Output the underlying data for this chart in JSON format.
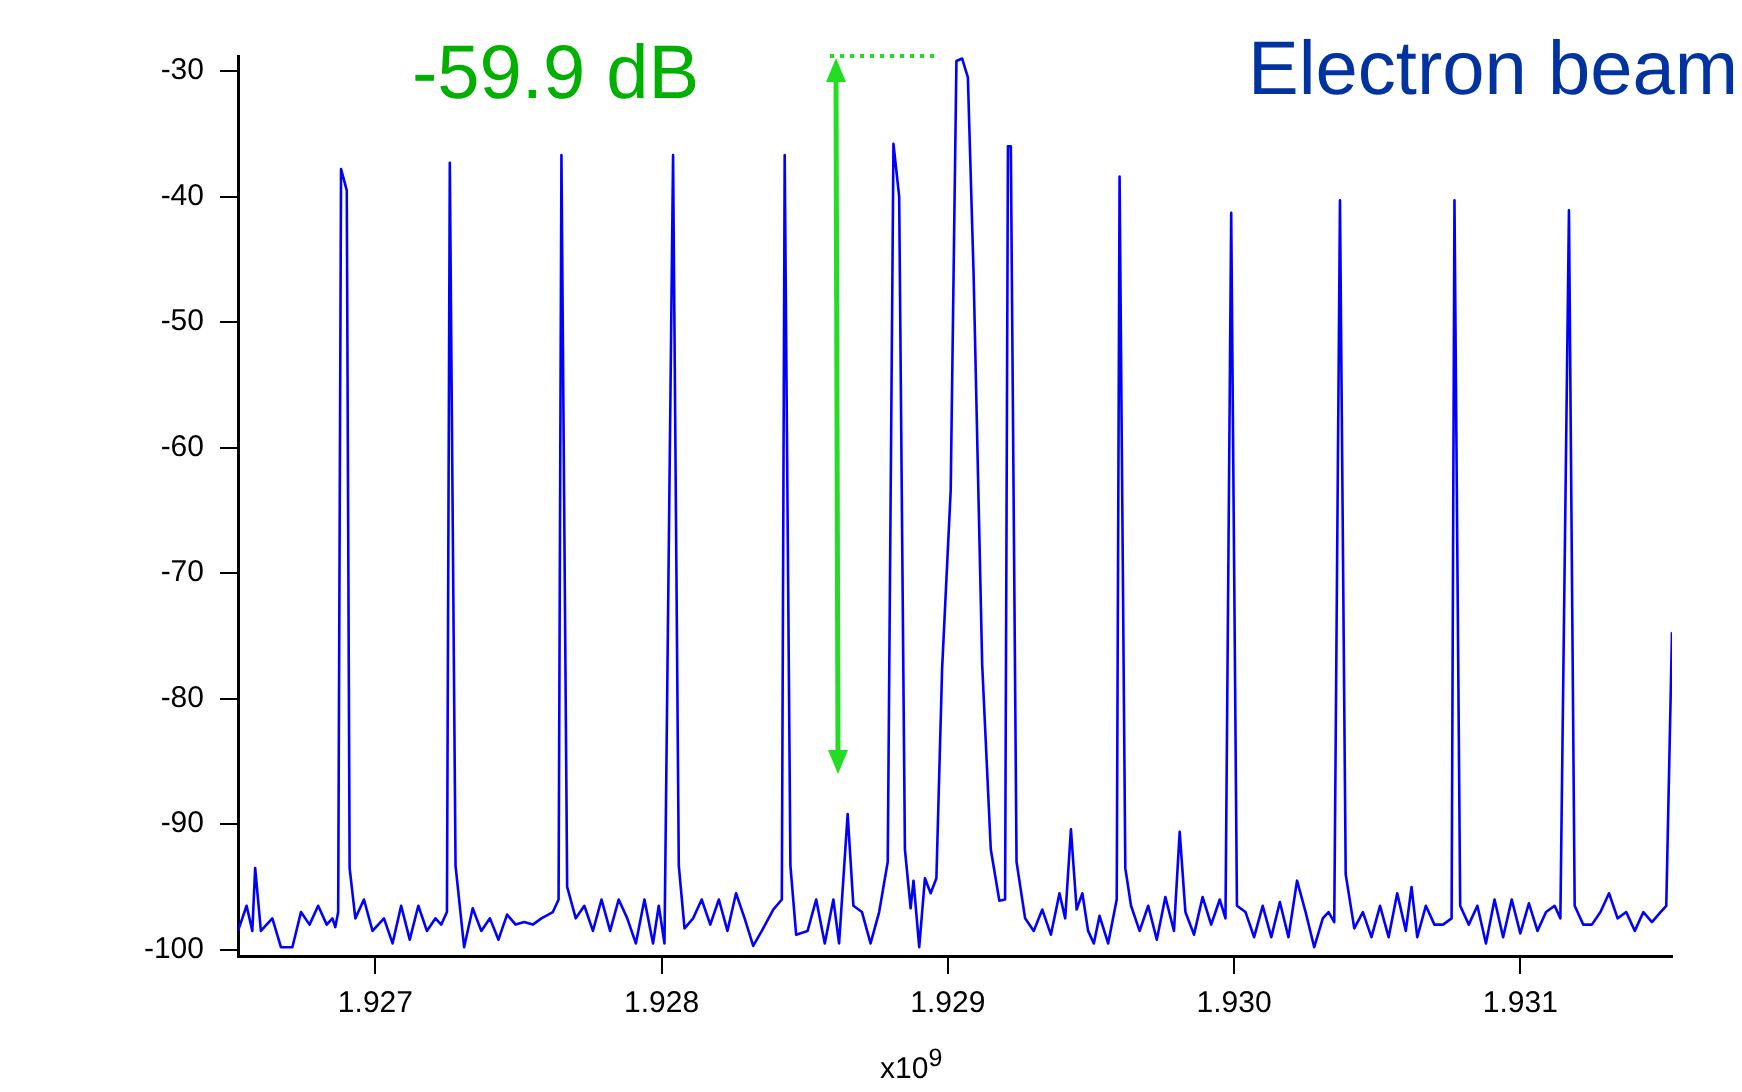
{
  "chart_data": {
    "type": "line",
    "title": "Electron beam",
    "xlabel": "x10$^{9}$",
    "annotations": [
      "-59.9 dB"
    ],
    "xlim": [
      1.92652,
      1.93153
    ],
    "ylim": [
      -100.5,
      -28.8
    ],
    "xticks": [
      1.927,
      1.928,
      1.929,
      {
        "value": 1.93,
        "label": "1.930"
      },
      1.931
    ],
    "yticks": [
      -30,
      -40,
      -50,
      -60,
      -70,
      -80,
      -90,
      -100
    ],
    "grid": false,
    "marker": "none",
    "line_style": "solid",
    "series": [
      {
        "color": "#0000ff",
        "x": [
          1.92652,
          1.92655,
          1.92657,
          1.92658,
          1.9266,
          1.92664,
          1.92667,
          1.92671,
          1.92674,
          1.92677,
          1.9268,
          1.92683,
          1.92685,
          1.92686,
          1.92687,
          1.92688,
          1.9269,
          1.92691,
          1.92693,
          1.92696,
          1.92699,
          1.92703,
          1.92706,
          1.92709,
          1.92712,
          1.92715,
          1.92718,
          1.92721,
          1.92723,
          1.92725,
          1.92726,
          1.92728,
          1.92731,
          1.92734,
          1.92737,
          1.9274,
          1.92743,
          1.92746,
          1.92749,
          1.92752,
          1.92755,
          1.92758,
          1.92762,
          1.92764,
          1.92765,
          1.92767,
          1.9277,
          1.92773,
          1.92776,
          1.92779,
          1.92782,
          1.92785,
          1.92788,
          1.92791,
          1.92794,
          1.92797,
          1.92799,
          1.92801,
          1.92804,
          1.92806,
          1.92808,
          1.92811,
          1.92814,
          1.92817,
          1.9282,
          1.92823,
          1.92826,
          1.92829,
          1.92832,
          1.92835,
          1.92839,
          1.92842,
          1.92843,
          1.92845,
          1.92847,
          1.92851,
          1.92854,
          1.92857,
          1.9286,
          1.92862,
          1.92865,
          1.92867,
          1.9287,
          1.92873,
          1.92876,
          1.92879,
          1.92881,
          1.92883,
          1.92885,
          1.92887,
          1.92888,
          1.9289,
          1.92892,
          1.92894,
          1.92896,
          1.92898,
          1.92901,
          1.92903,
          1.92905,
          1.92907,
          1.92909,
          1.92912,
          1.92915,
          1.92918,
          1.9292,
          1.92921,
          1.92922,
          1.92924,
          1.92927,
          1.9293,
          1.92933,
          1.92936,
          1.92939,
          1.92941,
          1.92943,
          1.92945,
          1.92947,
          1.92949,
          1.92951,
          1.92953,
          1.92956,
          1.92959,
          1.9296,
          1.92962,
          1.92964,
          1.92967,
          1.9297,
          1.92973,
          1.92976,
          1.92979,
          1.92981,
          1.92983,
          1.92986,
          1.92989,
          1.92992,
          1.92995,
          1.92997,
          1.92999,
          1.93001,
          1.93004,
          1.93007,
          1.9301,
          1.93013,
          1.93016,
          1.93019,
          1.93022,
          1.93025,
          1.93028,
          1.93031,
          1.93033,
          1.93035,
          1.93037,
          1.93039,
          1.93042,
          1.93045,
          1.93048,
          1.93051,
          1.93054,
          1.93057,
          1.9306,
          1.93062,
          1.93064,
          1.93067,
          1.9307,
          1.93073,
          1.93076,
          1.93077,
          1.93079,
          1.93082,
          1.93085,
          1.93088,
          1.93091,
          1.93094,
          1.93097,
          1.931,
          1.93103,
          1.93106,
          1.93109,
          1.93112,
          1.93114,
          1.93117,
          1.93119,
          1.93122,
          1.93125,
          1.93128,
          1.93131,
          1.93134,
          1.93137,
          1.9314,
          1.93143,
          1.93146,
          1.93149,
          1.93151,
          1.93153
        ],
        "values": [
          -98.5,
          -96.5,
          -98.5,
          -93.5,
          -98.5,
          -97.5,
          -99.8,
          -99.8,
          -97,
          -98,
          -96.5,
          -98,
          -97.5,
          -98.2,
          -97,
          -37.8,
          -39.5,
          -93.5,
          -97.5,
          -96,
          -98.5,
          -97.5,
          -99.5,
          -96.5,
          -99.2,
          -96.5,
          -98.5,
          -97.5,
          -98,
          -97,
          -37.3,
          -93.3,
          -99.8,
          -96.7,
          -98.5,
          -97.5,
          -99.2,
          -97.2,
          -98,
          -97.8,
          -98,
          -97.5,
          -97,
          -96,
          -36.7,
          -95,
          -97.5,
          -96.5,
          -98.5,
          -96,
          -98.5,
          -96,
          -97.5,
          -99.5,
          -96,
          -99.5,
          -96.5,
          -99.5,
          -36.7,
          -93.3,
          -98.3,
          -97.5,
          -96,
          -98,
          -96,
          -98.5,
          -95.5,
          -97.5,
          -99.7,
          -98.5,
          -96.8,
          -96,
          -36.7,
          -93.3,
          -98.8,
          -98.5,
          -96,
          -99.5,
          -96,
          -99.5,
          -89.2,
          -96.5,
          -97,
          -99.5,
          -97,
          -93,
          -35.8,
          -40,
          -92,
          -96.7,
          -94.5,
          -99.8,
          -94.3,
          -95.5,
          -94.3,
          -77.6,
          -63.4,
          -29.2,
          -29,
          -30.5,
          -46.2,
          -77.3,
          -92,
          -96.1,
          -96,
          -36,
          -36,
          -93,
          -97.5,
          -98.5,
          -96.8,
          -98.8,
          -95.5,
          -97.5,
          -90.4,
          -96.8,
          -95.5,
          -98.5,
          -99.5,
          -97.3,
          -99.5,
          -96,
          -38.4,
          -93.5,
          -96.5,
          -98.5,
          -96.5,
          -99.2,
          -95.8,
          -98.5,
          -90.6,
          -97,
          -98.8,
          -95.8,
          -98,
          -96,
          -97.5,
          -41.3,
          -96.5,
          -97,
          -99,
          -96.5,
          -99,
          -96.2,
          -99,
          -94.5,
          -97,
          -99.8,
          -97.5,
          -97,
          -97.8,
          -40.3,
          -94,
          -98.3,
          -97,
          -99,
          -96.5,
          -99,
          -95.5,
          -98.5,
          -95,
          -99,
          -96.5,
          -98,
          -98,
          -97.5,
          -40.3,
          -96.5,
          -98,
          -96.5,
          -99.5,
          -96,
          -99,
          -96,
          -98.7,
          -96.3,
          -98.5,
          -97,
          -96.5,
          -97.5,
          -41.1,
          -96.5,
          -98,
          -98,
          -97,
          -95.5,
          -97.5,
          -97,
          -98.5,
          -97,
          -97.8,
          -97,
          -96.5,
          -74.7
        ]
      }
    ]
  }
}
